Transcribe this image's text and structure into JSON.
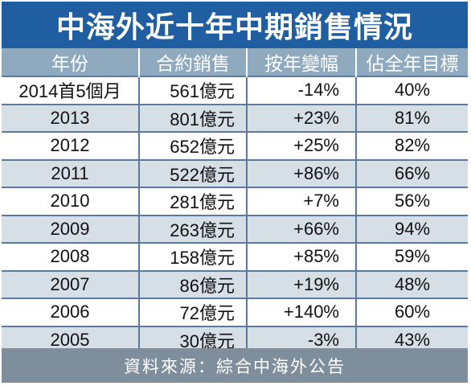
{
  "title": "中海外近十年中期銷售情況",
  "headers": [
    "年份",
    "合約銷售",
    "按年變幅",
    "佔全年目標"
  ],
  "rows": [
    {
      "year": "2014首5個月",
      "sales": "561億元",
      "change": "-14%",
      "target": "40%"
    },
    {
      "year": "2013",
      "sales": "801億元",
      "change": "+23%",
      "target": "81%"
    },
    {
      "year": "2012",
      "sales": "652億元",
      "change": "+25%",
      "target": "82%"
    },
    {
      "year": "2011",
      "sales": "522億元",
      "change": "+86%",
      "target": "66%"
    },
    {
      "year": "2010",
      "sales": "281億元",
      "change": "+7%",
      "target": "56%"
    },
    {
      "year": "2009",
      "sales": "263億元",
      "change": "+66%",
      "target": "94%"
    },
    {
      "year": "2008",
      "sales": "158億元",
      "change": "+85%",
      "target": "59%"
    },
    {
      "year": "2007",
      "sales": "86億元",
      "change": "+19%",
      "target": "48%"
    },
    {
      "year": "2006",
      "sales": "72億元",
      "change": "+140%",
      "target": "60%"
    },
    {
      "year": "2005",
      "sales": "30億元",
      "change": "-3%",
      "target": "43%"
    }
  ],
  "footer": "資料來源：綜合中海外公告",
  "colors": {
    "title_bg": "#1f5ea0",
    "header_bg": "#8fa9bf",
    "stripe": "#d6dee6",
    "footer_bg": "#7f8e9c"
  }
}
